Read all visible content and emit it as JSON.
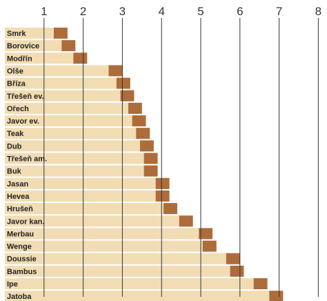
{
  "chart_data": {
    "type": "bar",
    "orientation": "horizontal",
    "categories": [
      "Smrk",
      "Borovice",
      "Modřín",
      "Olše",
      "Bříza",
      "Třešeň ev.",
      "Ořech",
      "Javor ev.",
      "Teak",
      "Dub",
      "Třešeň am.",
      "Buk",
      "Jasan",
      "Hevea",
      "Hrušeň",
      "Javor kan.",
      "Merbau",
      "Wenge",
      "Doussie",
      "Bambus",
      "Ipe",
      "Jatoba"
    ],
    "series": [
      {
        "values": [
          1.25,
          1.45,
          1.75,
          2.65,
          2.85,
          2.95,
          3.15,
          3.25,
          3.35,
          3.45,
          3.55,
          3.55,
          3.85,
          3.85,
          4.05,
          4.45,
          4.95,
          5.05,
          5.65,
          5.75,
          6.35,
          6.75
        ]
      },
      {
        "values": [
          1.6,
          1.8,
          2.1,
          3.0,
          3.2,
          3.3,
          3.5,
          3.6,
          3.7,
          3.8,
          3.9,
          3.9,
          4.2,
          4.2,
          4.4,
          4.8,
          5.3,
          5.4,
          6.0,
          6.1,
          6.7,
          7.1
        ]
      }
    ],
    "xlim": [
      0,
      8
    ],
    "xticks": [
      "1",
      "2",
      "3",
      "4",
      "5",
      "6",
      "7",
      "8"
    ],
    "grid": true,
    "colors": {
      "range": "#ad6c3b",
      "bar": "#f1dcb4",
      "grid": "#333333",
      "label_bg": "#f1dcb4"
    }
  }
}
